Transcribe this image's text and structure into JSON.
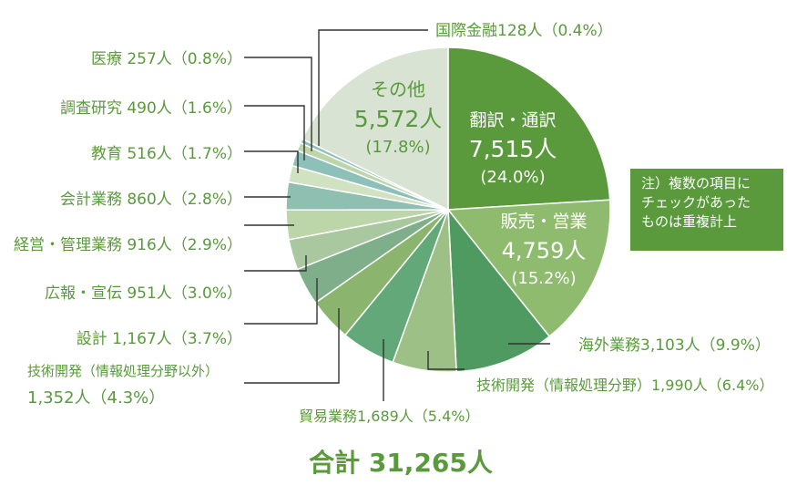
{
  "chart_data": {
    "type": "pie",
    "total_label": "合計 31,265人",
    "note": "注）複数の項目に\nチェックがあった\nものは重複計上",
    "slices": [
      {
        "name": "翻訳・通訳",
        "value": 7515,
        "pct": 24.0,
        "label_count": "7,515人",
        "label_pct": "(24.0%)",
        "color": "#5a9a3c",
        "inside": true
      },
      {
        "name": "販売・営業",
        "value": 4759,
        "pct": 15.2,
        "label_count": "4,759人",
        "label_pct": "(15.2%)",
        "color": "#8fbb6e",
        "inside": true
      },
      {
        "name": "海外業務",
        "value": 3103,
        "pct": 9.9,
        "label": "海外業務3,103人（9.9%）",
        "color": "#4e9a60"
      },
      {
        "name": "技術開発（情報処理分野）",
        "value": 1990,
        "pct": 6.4,
        "label": "技術開発（情報処理分野）1,990人（6.4%）",
        "color": "#9cc085"
      },
      {
        "name": "貿易業務",
        "value": 1689,
        "pct": 5.4,
        "label": "貿易業務1,689人（5.4%）",
        "color": "#62a878"
      },
      {
        "name": "技術開発（情報処理分野以外）",
        "value": 1352,
        "pct": 4.3,
        "label_line1": "技術開発（情報処理分野以外）",
        "label_line2": "1,352人（4.3%）",
        "color": "#8bb56e"
      },
      {
        "name": "設計",
        "value": 1167,
        "pct": 3.7,
        "label": "設計 1,167人（3.7%）",
        "color": "#7fae8b"
      },
      {
        "name": "広報・宣伝",
        "value": 951,
        "pct": 3.0,
        "label": "広報・宣伝 951人（3.0%）",
        "color": "#a9c8a0"
      },
      {
        "name": "経営・管理業務",
        "value": 916,
        "pct": 2.9,
        "label": "経営・管理業務 916人（2.9%）",
        "color": "#bcd6a9"
      },
      {
        "name": "会計業務",
        "value": 860,
        "pct": 2.8,
        "label": "会計業務 860人（2.8%）",
        "color": "#8ebfb0"
      },
      {
        "name": "教育",
        "value": 516,
        "pct": 1.7,
        "label": "教育 516人（1.7%）",
        "color": "#d0e2c2"
      },
      {
        "name": "調査研究",
        "value": 490,
        "pct": 1.6,
        "label": "調査研究 490人（1.6%）",
        "color": "#8cc0b9"
      },
      {
        "name": "医療",
        "value": 257,
        "pct": 0.8,
        "label": "医療 257人（0.8%）",
        "color": "#bcd6a9"
      },
      {
        "name": "国際金融",
        "value": 128,
        "pct": 0.4,
        "label": "国際金融128人（0.4%）",
        "color": "#8cc0b9"
      },
      {
        "name": "その他",
        "value": 5572,
        "pct": 17.8,
        "label_count": "5,572人",
        "label_pct": "(17.8%)",
        "color": "#d9e3d3",
        "inside": true,
        "text_color": "#5a9a3c"
      }
    ]
  }
}
